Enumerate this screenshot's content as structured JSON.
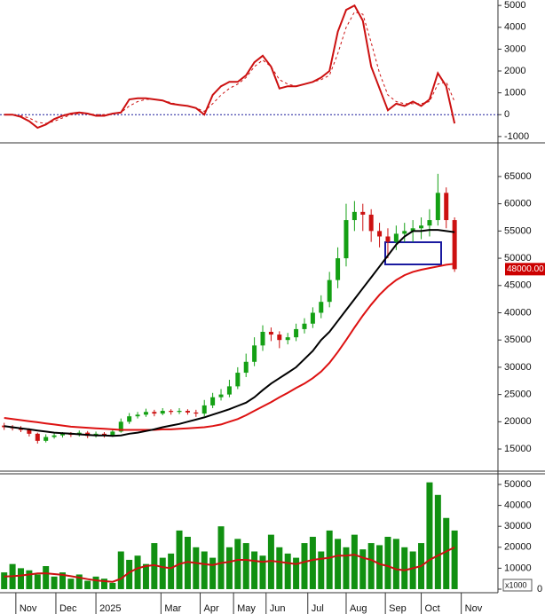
{
  "chart_data": [
    {
      "type": "line",
      "series": [
        {
          "color": "#cc1111",
          "style": "solid",
          "values": [
            0,
            0,
            -100,
            -300,
            -600,
            -450,
            -200,
            -50,
            50,
            100,
            50,
            -50,
            -50,
            50,
            100,
            700,
            750,
            750,
            700,
            650,
            500,
            450,
            400,
            300,
            0,
            900,
            1300,
            1500,
            1500,
            1800,
            2400,
            2700,
            2200,
            1200,
            1300,
            1300,
            1400,
            1500,
            1700,
            2000,
            3800,
            4800,
            5000,
            4300,
            2200,
            1200,
            200,
            500,
            400,
            600,
            400,
            700,
            1900,
            1300,
            -400
          ]
        },
        {
          "color": "#cc1111",
          "style": "dashed",
          "values": [
            0,
            0,
            -50,
            -150,
            -350,
            -400,
            -300,
            -150,
            0,
            50,
            50,
            0,
            0,
            50,
            100,
            400,
            600,
            700,
            700,
            650,
            550,
            450,
            400,
            300,
            150,
            500,
            900,
            1200,
            1400,
            1700,
            2200,
            2500,
            2200,
            1600,
            1400,
            1300,
            1400,
            1500,
            1600,
            1800,
            2800,
            4000,
            4700,
            4600,
            3300,
            1900,
            900,
            600,
            500,
            500,
            500,
            600,
            1400,
            1500,
            600
          ]
        }
      ],
      "zero_line": {
        "value": 0,
        "color": "#1c1c9c"
      },
      "ylim": [
        -1250,
        5250
      ],
      "yticks": [
        -1000,
        0,
        1000,
        2000,
        3000,
        4000,
        5000
      ]
    },
    {
      "type": "candlestick",
      "open": [
        19300,
        19000,
        18800,
        18500,
        17800,
        16500,
        17200,
        17500,
        17800,
        17600,
        18000,
        17400,
        17800,
        17500,
        18200,
        20000,
        21000,
        21300,
        21800,
        21500,
        22000,
        21800,
        22000,
        21700,
        21500,
        23000,
        24500,
        25000,
        26500,
        29000,
        31000,
        34000,
        36500,
        36000,
        35000,
        35500,
        37000,
        38000,
        40000,
        42000,
        46000,
        50000,
        57000,
        58500,
        58000,
        55000,
        54000,
        53000,
        54500,
        55000,
        55500,
        56000,
        57000,
        62000,
        57000
      ],
      "high": [
        19800,
        19400,
        19200,
        18800,
        18000,
        17700,
        17900,
        18100,
        18100,
        18400,
        18300,
        18200,
        18100,
        18700,
        20600,
        21600,
        21800,
        22400,
        22200,
        22500,
        22300,
        22500,
        22300,
        22200,
        24000,
        25300,
        26000,
        27700,
        30000,
        32500,
        35500,
        37700,
        37300,
        36600,
        36300,
        38000,
        39000,
        41000,
        43200,
        47500,
        52000,
        60000,
        60500,
        60000,
        59000,
        56500,
        55500,
        56000,
        56500,
        57000,
        57500,
        59000,
        65500,
        63000,
        57500
      ],
      "low": [
        18500,
        18400,
        18100,
        17300,
        16000,
        16200,
        16900,
        17100,
        17200,
        17300,
        17000,
        17100,
        17100,
        17200,
        18000,
        19600,
        20600,
        20900,
        21000,
        21200,
        21300,
        21400,
        21300,
        20900,
        21000,
        22500,
        23900,
        24500,
        26000,
        28200,
        30200,
        33000,
        34800,
        33500,
        34200,
        34800,
        36200,
        37200,
        39000,
        41000,
        44500,
        48500,
        55000,
        55000,
        53000,
        52000,
        50000,
        51500,
        53000,
        53000,
        53500,
        54000,
        56000,
        55500,
        47500
      ],
      "close": [
        19000,
        18800,
        18500,
        17800,
        16500,
        17200,
        17500,
        17800,
        17600,
        18000,
        17400,
        17800,
        17500,
        18200,
        20000,
        21000,
        21300,
        21800,
        21500,
        22000,
        21800,
        22000,
        21700,
        21500,
        23000,
        24500,
        25000,
        26500,
        29000,
        31000,
        34000,
        36500,
        36000,
        35000,
        35500,
        37000,
        38000,
        40000,
        42000,
        46000,
        50000,
        57000,
        58500,
        58000,
        55000,
        54000,
        53000,
        54500,
        55000,
        55500,
        56000,
        57000,
        62000,
        57000,
        48000
      ],
      "up_color": "#14a014",
      "down_color": "#cc1111",
      "series": [
        {
          "color": "#dd1111",
          "values": [
            20700,
            20500,
            20300,
            20100,
            19900,
            19700,
            19500,
            19300,
            19100,
            19000,
            18900,
            18800,
            18700,
            18600,
            18500,
            18500,
            18500,
            18500,
            18500,
            18600,
            18600,
            18700,
            18800,
            18900,
            19000,
            19200,
            19500,
            20000,
            20500,
            21200,
            22000,
            22800,
            23600,
            24500,
            25300,
            26200,
            27000,
            28000,
            29200,
            30800,
            32800,
            35000,
            37300,
            39500,
            41500,
            43300,
            44800,
            46000,
            46900,
            47500,
            47900,
            48200,
            48500,
            48800,
            49000
          ]
        },
        {
          "color": "#000000",
          "values": [
            19200,
            19000,
            18800,
            18600,
            18400,
            18200,
            18000,
            17900,
            17800,
            17700,
            17600,
            17500,
            17500,
            17400,
            17500,
            17800,
            18000,
            18300,
            18600,
            19000,
            19300,
            19600,
            20000,
            20400,
            20800,
            21300,
            21800,
            22300,
            22900,
            23500,
            24500,
            25800,
            27000,
            28000,
            29000,
            30000,
            31500,
            33000,
            35000,
            36500,
            38500,
            40500,
            42500,
            44500,
            46500,
            48500,
            50500,
            52500,
            54000,
            55000,
            55000,
            55200,
            55200,
            55000,
            54800
          ]
        }
      ],
      "current_price": {
        "value": 48000,
        "label": "48000.00",
        "color": "#cc0000"
      },
      "ylim": [
        11100,
        70850
      ],
      "yticks": [
        15000,
        20000,
        25000,
        30000,
        35000,
        40000,
        45000,
        50000,
        55000,
        60000,
        65000
      ]
    },
    {
      "type": "bar",
      "x": [
        0,
        1,
        2,
        3,
        4,
        5,
        6,
        7,
        8,
        9,
        10,
        11,
        12,
        13,
        14,
        15,
        16,
        17,
        18,
        19,
        20,
        21,
        22,
        23,
        24,
        25,
        26,
        27,
        28,
        29,
        30,
        31,
        32,
        33,
        34,
        35,
        36,
        37,
        38,
        39,
        40,
        41,
        42,
        43,
        44,
        45,
        46,
        47,
        48,
        49,
        50,
        51,
        52,
        53,
        54
      ],
      "values": [
        8000,
        12000,
        10000,
        9000,
        7000,
        11000,
        6000,
        8000,
        5000,
        7000,
        4000,
        6000,
        5000,
        3000,
        18000,
        14000,
        16000,
        12000,
        22000,
        15000,
        17000,
        28000,
        25000,
        20000,
        18000,
        15000,
        30000,
        20000,
        24000,
        22000,
        18000,
        16000,
        26000,
        20000,
        17000,
        15000,
        22000,
        25000,
        18000,
        28000,
        24000,
        20000,
        26000,
        19000,
        22000,
        21000,
        25000,
        24000,
        20000,
        18000,
        22000,
        51000,
        45000,
        34000,
        28000
      ],
      "color": "#119011",
      "series": [
        {
          "color": "#cc1111",
          "values": [
            6000,
            6200,
            6500,
            7000,
            7500,
            7600,
            7200,
            6800,
            6200,
            5500,
            4800,
            4200,
            3800,
            3500,
            5000,
            8000,
            10000,
            11000,
            11500,
            10500,
            10000,
            12000,
            13000,
            12500,
            12000,
            11500,
            12500,
            13000,
            14000,
            14000,
            13500,
            13000,
            13500,
            13000,
            12500,
            12000,
            13000,
            14000,
            14500,
            15000,
            16000,
            16000,
            16500,
            15000,
            14000,
            12000,
            11000,
            9500,
            9000,
            10000,
            11000,
            14000,
            16000,
            18000,
            20000
          ]
        }
      ],
      "unit_label": "x1000",
      "ylim": [
        -1700,
        54660
      ],
      "yticks": [
        0,
        10000,
        20000,
        30000,
        40000,
        50000
      ],
      "xlim": [
        -0.5,
        59.2
      ],
      "xticks": [
        {
          "value": 1.4,
          "label": "Nov"
        },
        {
          "value": 6.2,
          "label": "Dec"
        },
        {
          "value": 11,
          "label": "2025"
        },
        {
          "value": 18.8,
          "label": "Mar"
        },
        {
          "value": 23.5,
          "label": "Apr"
        },
        {
          "value": 27.5,
          "label": "May"
        },
        {
          "value": 31.4,
          "label": "Jun"
        },
        {
          "value": 36.4,
          "label": "Jul"
        },
        {
          "value": 41,
          "label": "Aug"
        },
        {
          "value": 45.7,
          "label": "Sep"
        },
        {
          "value": 50,
          "label": "Oct"
        },
        {
          "value": 54.8,
          "label": "Nov"
        }
      ]
    }
  ]
}
